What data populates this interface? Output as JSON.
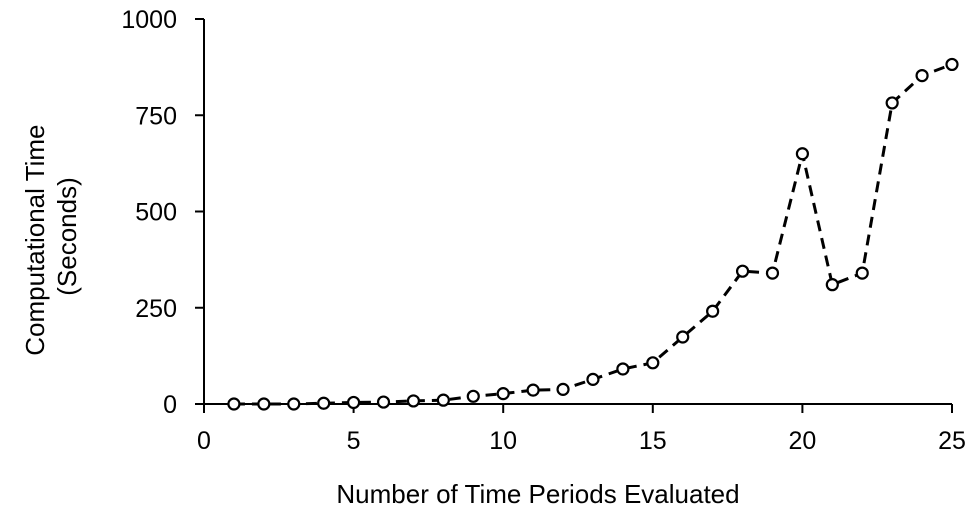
{
  "chart_data": {
    "type": "line",
    "title": "",
    "xlabel": "Number of Time Periods Evaluated",
    "ylabel_lines": [
      "Computational Time",
      "(Seconds)"
    ],
    "xlim": [
      0,
      25
    ],
    "ylim": [
      0,
      1000
    ],
    "x_ticks": [
      0,
      5,
      10,
      15,
      20,
      25
    ],
    "y_ticks": [
      0,
      250,
      500,
      750,
      1000
    ],
    "grid": false,
    "legend": "none",
    "colors": {
      "line": "#000000",
      "marker_fill": "#ffffff",
      "marker_stroke": "#000000"
    },
    "series": [
      {
        "marker": "open-circle",
        "line_style": "dashed",
        "x": [
          1,
          2,
          3,
          4,
          5,
          6,
          7,
          8,
          9,
          10,
          11,
          12,
          13,
          14,
          15,
          16,
          17,
          18,
          19,
          20,
          21,
          22,
          23,
          24,
          25
        ],
        "y": [
          0,
          0,
          0,
          2,
          4,
          5,
          8,
          10,
          20,
          27,
          36,
          38,
          64,
          91,
          107,
          174,
          241,
          345,
          340,
          650,
          310,
          340,
          782,
          853,
          882
        ]
      }
    ]
  }
}
